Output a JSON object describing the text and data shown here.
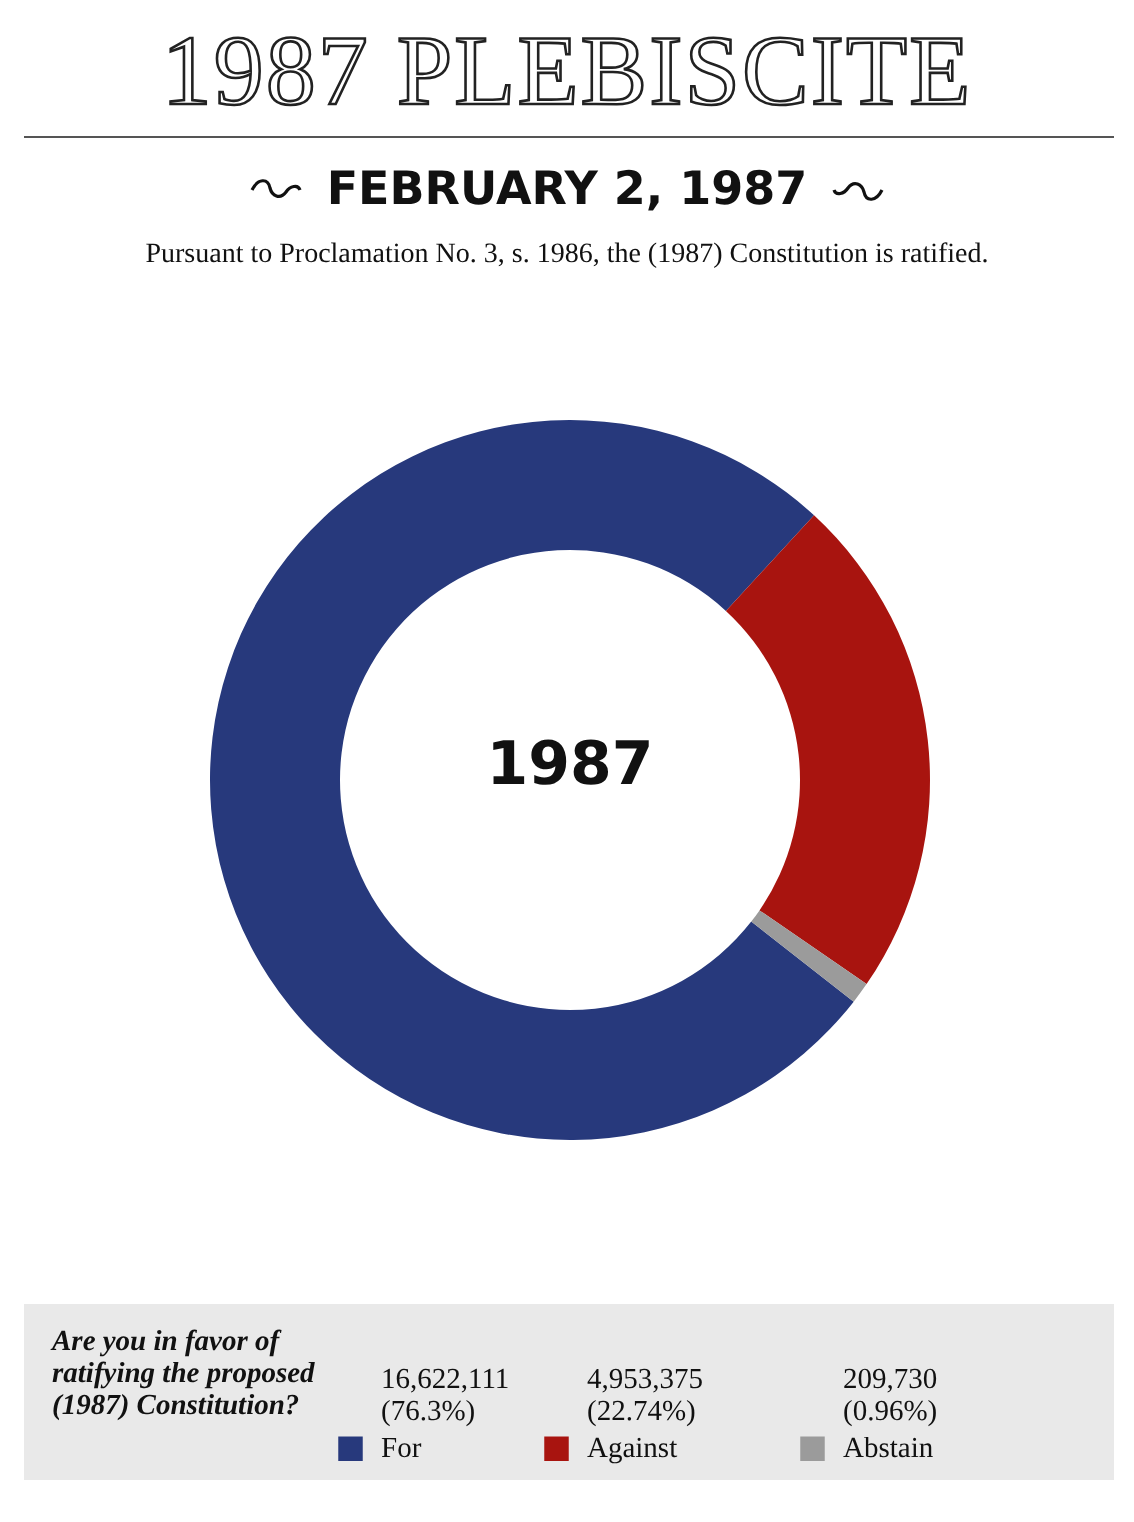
{
  "chart_data": {
    "type": "donut",
    "title": "1987 PLEBISCITE",
    "subtitle": "FEBRUARY 2, 1987",
    "annotations": [
      "Pursuant to Proclamation No. 3, s. 1986, the (1987) Constitution is ratified.",
      "1987"
    ],
    "legend_title": "Are you in favor of ratifying the proposed (1987) Constitution?",
    "categories": [
      "For",
      "Against",
      "Abstain"
    ],
    "values": [
      16622111,
      4953375,
      209730
    ],
    "value_labels": [
      "16,622,111 (76.3%)",
      "4,953,375 (22.74%)",
      "209,730 (0.96%)"
    ],
    "colors": [
      "#27397c",
      "#a8140f",
      "#9b9b9b"
    ],
    "legend": "bottom"
  }
}
